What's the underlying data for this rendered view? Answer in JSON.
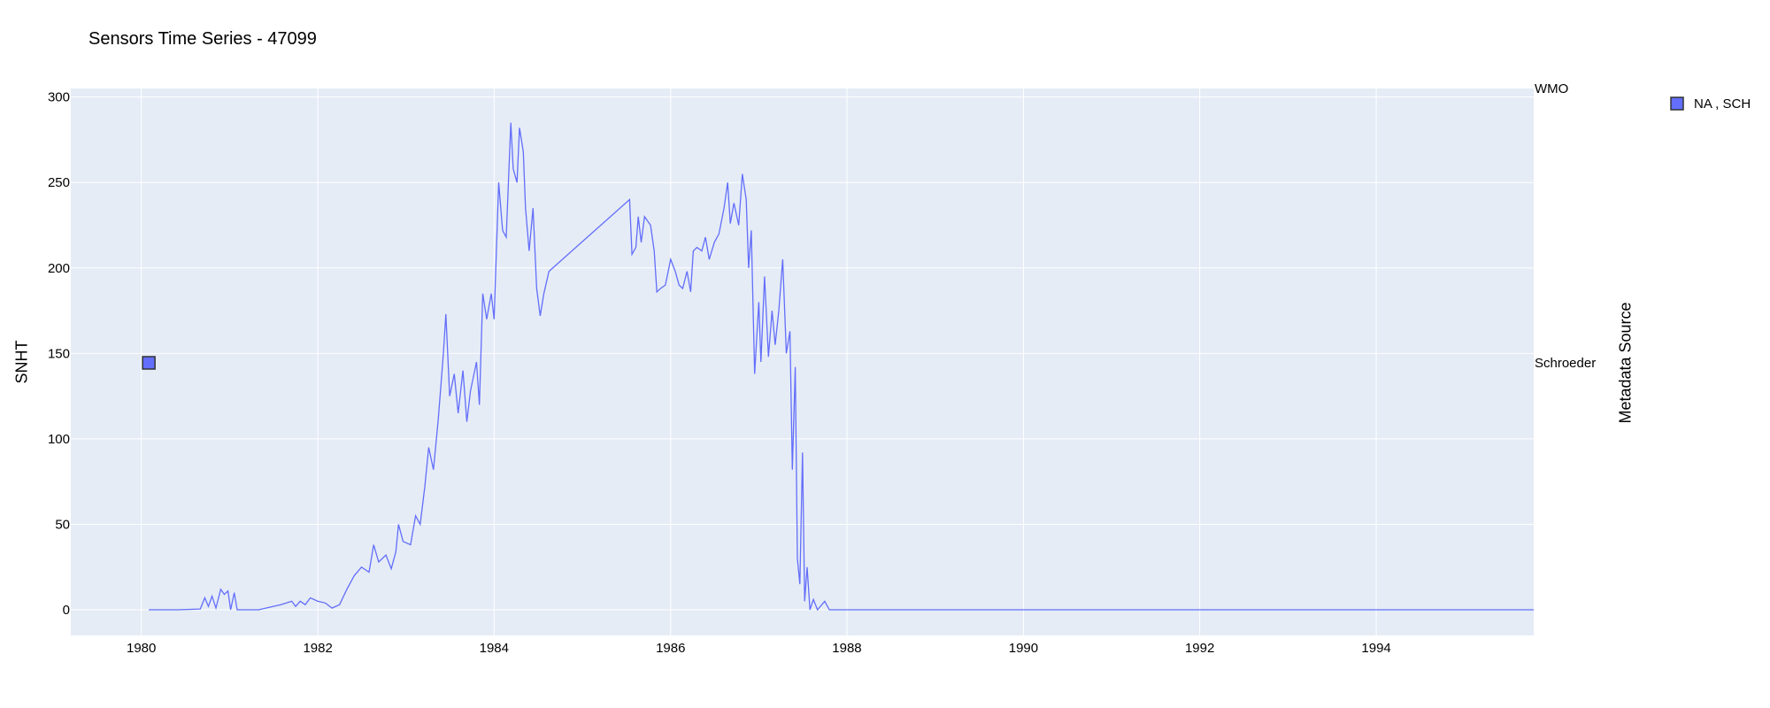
{
  "chart_data": {
    "type": "line",
    "title": "Sensors Time Series - 47099",
    "ylabel": "SNHT",
    "y2label": "Metadata Source",
    "xlim": [
      "1979-03-15",
      "1995-10-15"
    ],
    "ylim": [
      -15,
      305
    ],
    "x_ticks": [
      "1980",
      "1982",
      "1984",
      "1986",
      "1988",
      "1990",
      "1992",
      "1994"
    ],
    "y_ticks": [
      0,
      50,
      100,
      150,
      200,
      250,
      300
    ],
    "y2_ticks": [
      "WMO",
      "Schroeder"
    ],
    "grid": true,
    "legend": {
      "position": "top-right",
      "entries": [
        "NA , SCH"
      ]
    },
    "colors": {
      "line": "#636efa",
      "plot_bg": "#e5ecf6",
      "grid": "#ffffff"
    },
    "series": [
      {
        "type": "line",
        "axis": "y",
        "points": [
          [
            "1980-02-01",
            0
          ],
          [
            "1980-06-01",
            0
          ],
          [
            "1980-09-01",
            0.5
          ],
          [
            "1980-09-20",
            7
          ],
          [
            "1980-10-05",
            2
          ],
          [
            "1980-10-20",
            8
          ],
          [
            "1980-11-05",
            1
          ],
          [
            "1980-11-25",
            12
          ],
          [
            "1980-12-10",
            9
          ],
          [
            "1980-12-25",
            11
          ],
          [
            "1981-01-05",
            0
          ],
          [
            "1981-01-20",
            10
          ],
          [
            "1981-02-01",
            0
          ],
          [
            "1981-05-01",
            0
          ],
          [
            "1981-08-01",
            3
          ],
          [
            "1981-09-15",
            5
          ],
          [
            "1981-10-01",
            2
          ],
          [
            "1981-10-20",
            5
          ],
          [
            "1981-11-10",
            3
          ],
          [
            "1981-12-01",
            7
          ],
          [
            "1982-01-01",
            5
          ],
          [
            "1982-02-01",
            4
          ],
          [
            "1982-03-01",
            1
          ],
          [
            "1982-04-01",
            3
          ],
          [
            "1982-05-01",
            12
          ],
          [
            "1982-06-01",
            20
          ],
          [
            "1982-07-01",
            25
          ],
          [
            "1982-08-01",
            22
          ],
          [
            "1982-08-20",
            38
          ],
          [
            "1982-09-10",
            28
          ],
          [
            "1982-10-10",
            32
          ],
          [
            "1982-11-01",
            24
          ],
          [
            "1982-11-20",
            34
          ],
          [
            "1982-12-01",
            50
          ],
          [
            "1982-12-20",
            40
          ],
          [
            "1983-01-20",
            38
          ],
          [
            "1983-02-10",
            55
          ],
          [
            "1983-03-01",
            50
          ],
          [
            "1983-03-20",
            72
          ],
          [
            "1983-04-05",
            95
          ],
          [
            "1983-04-25",
            82
          ],
          [
            "1983-05-15",
            112
          ],
          [
            "1983-06-05",
            150
          ],
          [
            "1983-06-15",
            173
          ],
          [
            "1983-07-01",
            125
          ],
          [
            "1983-07-20",
            138
          ],
          [
            "1983-08-05",
            115
          ],
          [
            "1983-08-25",
            140
          ],
          [
            "1983-09-10",
            110
          ],
          [
            "1983-09-25",
            128
          ],
          [
            "1983-10-20",
            145
          ],
          [
            "1983-11-01",
            120
          ],
          [
            "1983-11-15",
            185
          ],
          [
            "1983-12-01",
            170
          ],
          [
            "1983-12-20",
            185
          ],
          [
            "1984-01-01",
            170
          ],
          [
            "1984-01-20",
            250
          ],
          [
            "1984-02-05",
            222
          ],
          [
            "1984-02-20",
            218
          ],
          [
            "1984-03-10",
            285
          ],
          [
            "1984-03-20",
            258
          ],
          [
            "1984-04-05",
            250
          ],
          [
            "1984-04-15",
            282
          ],
          [
            "1984-05-01",
            268
          ],
          [
            "1984-05-10",
            235
          ],
          [
            "1984-05-25",
            210
          ],
          [
            "1984-06-10",
            235
          ],
          [
            "1984-06-25",
            188
          ],
          [
            "1984-07-10",
            172
          ],
          [
            "1984-07-25",
            185
          ],
          [
            "1984-08-15",
            198
          ],
          [
            "1985-07-15",
            240
          ],
          [
            "1985-07-25",
            208
          ],
          [
            "1985-08-10",
            212
          ],
          [
            "1985-08-20",
            230
          ],
          [
            "1985-09-01",
            215
          ],
          [
            "1985-09-15",
            230
          ],
          [
            "1985-10-10",
            225
          ],
          [
            "1985-10-25",
            210
          ],
          [
            "1985-11-05",
            186
          ],
          [
            "1985-11-20",
            188
          ],
          [
            "1985-12-10",
            190
          ],
          [
            "1986-01-01",
            205
          ],
          [
            "1986-01-20",
            198
          ],
          [
            "1986-02-05",
            190
          ],
          [
            "1986-02-20",
            188
          ],
          [
            "1986-03-10",
            198
          ],
          [
            "1986-03-25",
            186
          ],
          [
            "1986-04-05",
            210
          ],
          [
            "1986-04-20",
            212
          ],
          [
            "1986-05-10",
            210
          ],
          [
            "1986-05-25",
            218
          ],
          [
            "1986-06-10",
            205
          ],
          [
            "1986-07-01",
            215
          ],
          [
            "1986-07-20",
            220
          ],
          [
            "1986-08-10",
            235
          ],
          [
            "1986-08-25",
            250
          ],
          [
            "1986-09-05",
            226
          ],
          [
            "1986-09-20",
            238
          ],
          [
            "1986-10-10",
            225
          ],
          [
            "1986-10-25",
            255
          ],
          [
            "1986-11-10",
            240
          ],
          [
            "1986-11-20",
            200
          ],
          [
            "1986-12-01",
            222
          ],
          [
            "1986-12-15",
            138
          ],
          [
            "1987-01-01",
            180
          ],
          [
            "1987-01-10",
            145
          ],
          [
            "1987-01-25",
            195
          ],
          [
            "1987-02-10",
            148
          ],
          [
            "1987-02-25",
            175
          ],
          [
            "1987-03-10",
            155
          ],
          [
            "1987-03-25",
            175
          ],
          [
            "1987-04-10",
            205
          ],
          [
            "1987-04-25",
            150
          ],
          [
            "1987-05-10",
            163
          ],
          [
            "1987-05-20",
            82
          ],
          [
            "1987-06-01",
            142
          ],
          [
            "1987-06-10",
            30
          ],
          [
            "1987-06-20",
            15
          ],
          [
            "1987-07-01",
            92
          ],
          [
            "1987-07-10",
            5
          ],
          [
            "1987-07-20",
            25
          ],
          [
            "1987-08-01",
            0
          ],
          [
            "1987-08-15",
            6
          ],
          [
            "1987-09-01",
            0
          ],
          [
            "1987-10-01",
            5
          ],
          [
            "1987-10-20",
            0
          ],
          [
            "1995-10-15",
            0
          ]
        ]
      },
      {
        "type": "marker",
        "axis": "y2",
        "name": "NA , SCH",
        "points": [
          [
            "1980-02-01",
            "Schroeder"
          ]
        ]
      }
    ]
  }
}
